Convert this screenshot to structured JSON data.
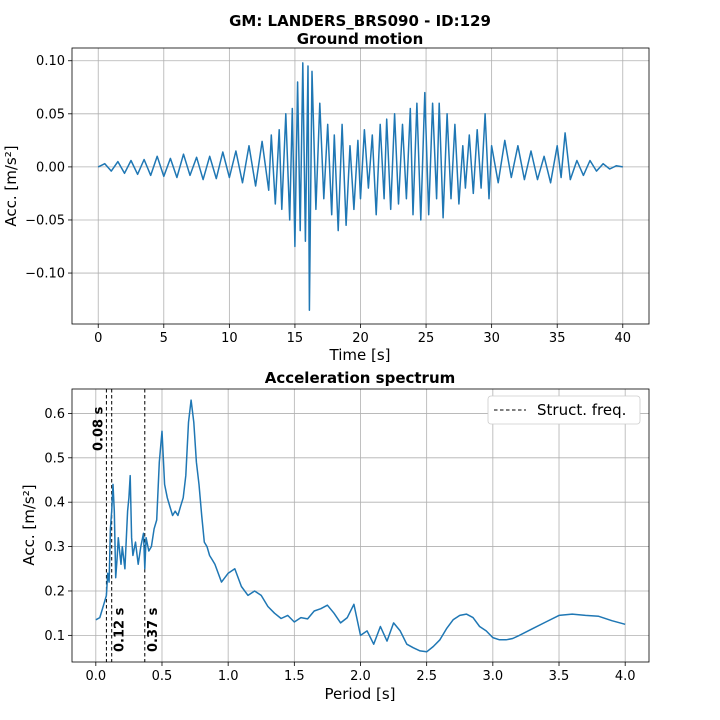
{
  "figure": {
    "suptitle": "GM: LANDERS_BRS090 - ID:129"
  },
  "chart_data": [
    {
      "type": "line",
      "title": "Ground motion",
      "xlabel": "Time [s]",
      "ylabel": "Acc. [m/s²]",
      "xlim": [
        -2,
        42
      ],
      "ylim": [
        -0.148,
        0.112
      ],
      "xticks": [
        0,
        5,
        10,
        15,
        20,
        25,
        30,
        35,
        40
      ],
      "yticks": [
        -0.1,
        -0.05,
        0.0,
        0.05,
        0.1
      ],
      "xtick_labels": [
        "0",
        "5",
        "10",
        "15",
        "20",
        "25",
        "30",
        "35",
        "40"
      ],
      "ytick_labels": [
        "−0.10",
        "−0.05",
        "0.00",
        "0.05",
        "0.10"
      ],
      "grid": true,
      "series": [
        {
          "color": "#1f77b4",
          "x": [
            0,
            0.5,
            1,
            1.5,
            2,
            2.5,
            3,
            3.5,
            4,
            4.5,
            5,
            5.5,
            6,
            6.5,
            7,
            7.5,
            8,
            8.5,
            9,
            9.5,
            10,
            10.5,
            11,
            11.5,
            12,
            12.5,
            13,
            13.2,
            13.5,
            13.8,
            14,
            14.3,
            14.6,
            14.8,
            15,
            15.2,
            15.4,
            15.6,
            15.8,
            16,
            16.1,
            16.3,
            16.6,
            16.9,
            17.2,
            17.5,
            17.8,
            18,
            18.3,
            18.6,
            18.9,
            19.2,
            19.5,
            19.8,
            20,
            20.3,
            20.6,
            20.9,
            21.2,
            21.5,
            21.8,
            22,
            22.3,
            22.6,
            22.9,
            23.2,
            23.5,
            23.8,
            24,
            24.3,
            24.6,
            24.9,
            25.2,
            25.5,
            25.8,
            26,
            26.3,
            26.6,
            26.9,
            27.2,
            27.5,
            27.8,
            28,
            28.3,
            28.6,
            28.9,
            29.2,
            29.5,
            29.8,
            30,
            30.5,
            31,
            31.5,
            32,
            32.5,
            33,
            33.5,
            34,
            34.5,
            35,
            35.3,
            35.6,
            36,
            36.5,
            37,
            37.5,
            38,
            38.5,
            39,
            39.5,
            40
          ],
          "y": [
            0,
            0.003,
            -0.004,
            0.005,
            -0.006,
            0.006,
            -0.007,
            0.007,
            -0.008,
            0.01,
            -0.009,
            0.008,
            -0.01,
            0.012,
            -0.008,
            0.009,
            -0.012,
            0.01,
            -0.011,
            0.014,
            -0.01,
            0.015,
            -0.015,
            0.02,
            -0.018,
            0.024,
            -0.022,
            0.03,
            -0.035,
            0.035,
            -0.04,
            0.05,
            -0.05,
            0.055,
            -0.075,
            0.08,
            -0.06,
            0.098,
            -0.07,
            0.095,
            -0.135,
            0.09,
            -0.04,
            0.06,
            -0.03,
            0.04,
            -0.045,
            0.03,
            -0.06,
            0.04,
            -0.055,
            0.02,
            -0.04,
            0.025,
            -0.03,
            0.035,
            -0.02,
            0.03,
            -0.045,
            0.04,
            -0.03,
            0.045,
            -0.04,
            0.05,
            -0.035,
            0.04,
            -0.03,
            0.055,
            -0.045,
            0.06,
            -0.05,
            0.07,
            -0.045,
            0.06,
            -0.03,
            0.06,
            -0.048,
            0.05,
            -0.03,
            0.04,
            -0.035,
            0.02,
            -0.02,
            0.03,
            -0.025,
            0.035,
            -0.02,
            0.05,
            -0.03,
            0.02,
            -0.015,
            0.025,
            -0.01,
            0.02,
            -0.012,
            0.015,
            -0.012,
            0.01,
            -0.015,
            0.02,
            -0.01,
            0.032,
            -0.012,
            0.006,
            -0.008,
            0.006,
            -0.004,
            0.003,
            -0.002,
            0.001,
            0
          ]
        }
      ]
    },
    {
      "type": "line",
      "title": "Acceleration spectrum",
      "xlabel": "Period [s]",
      "ylabel": "Acc. [m/s²]",
      "xlim": [
        -0.18,
        4.18
      ],
      "ylim": [
        0.04,
        0.655
      ],
      "xticks": [
        0,
        0.5,
        1,
        1.5,
        2,
        2.5,
        3,
        3.5,
        4
      ],
      "yticks": [
        0.1,
        0.2,
        0.3,
        0.4,
        0.5,
        0.6
      ],
      "xtick_labels": [
        "0.0",
        "0.5",
        "1.0",
        "1.5",
        "2.0",
        "2.5",
        "3.0",
        "3.5",
        "4.0"
      ],
      "ytick_labels": [
        "0.1",
        "0.2",
        "0.3",
        "0.4",
        "0.5",
        "0.6"
      ],
      "grid": true,
      "legend": {
        "entries": [
          "Struct. freq."
        ],
        "position": "top-right"
      },
      "series": [
        {
          "color": "#1f77b4",
          "x": [
            0.0,
            0.03,
            0.06,
            0.08,
            0.09,
            0.1,
            0.11,
            0.12,
            0.13,
            0.14,
            0.15,
            0.16,
            0.17,
            0.18,
            0.19,
            0.2,
            0.22,
            0.24,
            0.25,
            0.26,
            0.27,
            0.28,
            0.3,
            0.32,
            0.34,
            0.36,
            0.37,
            0.38,
            0.4,
            0.42,
            0.44,
            0.46,
            0.48,
            0.5,
            0.52,
            0.54,
            0.56,
            0.58,
            0.6,
            0.62,
            0.64,
            0.66,
            0.68,
            0.7,
            0.72,
            0.74,
            0.76,
            0.78,
            0.8,
            0.82,
            0.84,
            0.86,
            0.88,
            0.9,
            0.95,
            1.0,
            1.05,
            1.1,
            1.15,
            1.2,
            1.25,
            1.3,
            1.35,
            1.4,
            1.45,
            1.5,
            1.55,
            1.6,
            1.65,
            1.7,
            1.75,
            1.8,
            1.85,
            1.9,
            1.95,
            2.0,
            2.05,
            2.1,
            2.15,
            2.2,
            2.25,
            2.3,
            2.35,
            2.4,
            2.45,
            2.5,
            2.55,
            2.6,
            2.65,
            2.7,
            2.75,
            2.8,
            2.85,
            2.9,
            2.95,
            3.0,
            3.05,
            3.1,
            3.15,
            3.2,
            3.3,
            3.4,
            3.5,
            3.6,
            3.7,
            3.8,
            3.9,
            4.0
          ],
          "y": [
            0.135,
            0.14,
            0.17,
            0.19,
            0.24,
            0.22,
            0.34,
            0.38,
            0.44,
            0.38,
            0.23,
            0.27,
            0.32,
            0.29,
            0.26,
            0.3,
            0.25,
            0.38,
            0.41,
            0.46,
            0.32,
            0.28,
            0.31,
            0.26,
            0.3,
            0.33,
            0.25,
            0.32,
            0.29,
            0.3,
            0.34,
            0.36,
            0.49,
            0.56,
            0.44,
            0.41,
            0.39,
            0.37,
            0.38,
            0.37,
            0.39,
            0.41,
            0.46,
            0.58,
            0.63,
            0.58,
            0.49,
            0.44,
            0.37,
            0.31,
            0.3,
            0.28,
            0.27,
            0.26,
            0.22,
            0.24,
            0.25,
            0.21,
            0.19,
            0.2,
            0.19,
            0.165,
            0.15,
            0.138,
            0.145,
            0.13,
            0.14,
            0.137,
            0.155,
            0.16,
            0.168,
            0.15,
            0.128,
            0.14,
            0.17,
            0.1,
            0.11,
            0.08,
            0.12,
            0.087,
            0.128,
            0.11,
            0.08,
            0.072,
            0.065,
            0.063,
            0.075,
            0.09,
            0.115,
            0.135,
            0.145,
            0.148,
            0.14,
            0.12,
            0.11,
            0.095,
            0.09,
            0.09,
            0.093,
            0.1,
            0.115,
            0.13,
            0.145,
            0.148,
            0.145,
            0.143,
            0.133,
            0.125
          ]
        }
      ],
      "struct_periods": [
        0.08,
        0.12,
        0.37
      ],
      "struct_labels": [
        "0.08 s",
        "0.12 s",
        "0.37 s"
      ]
    }
  ]
}
